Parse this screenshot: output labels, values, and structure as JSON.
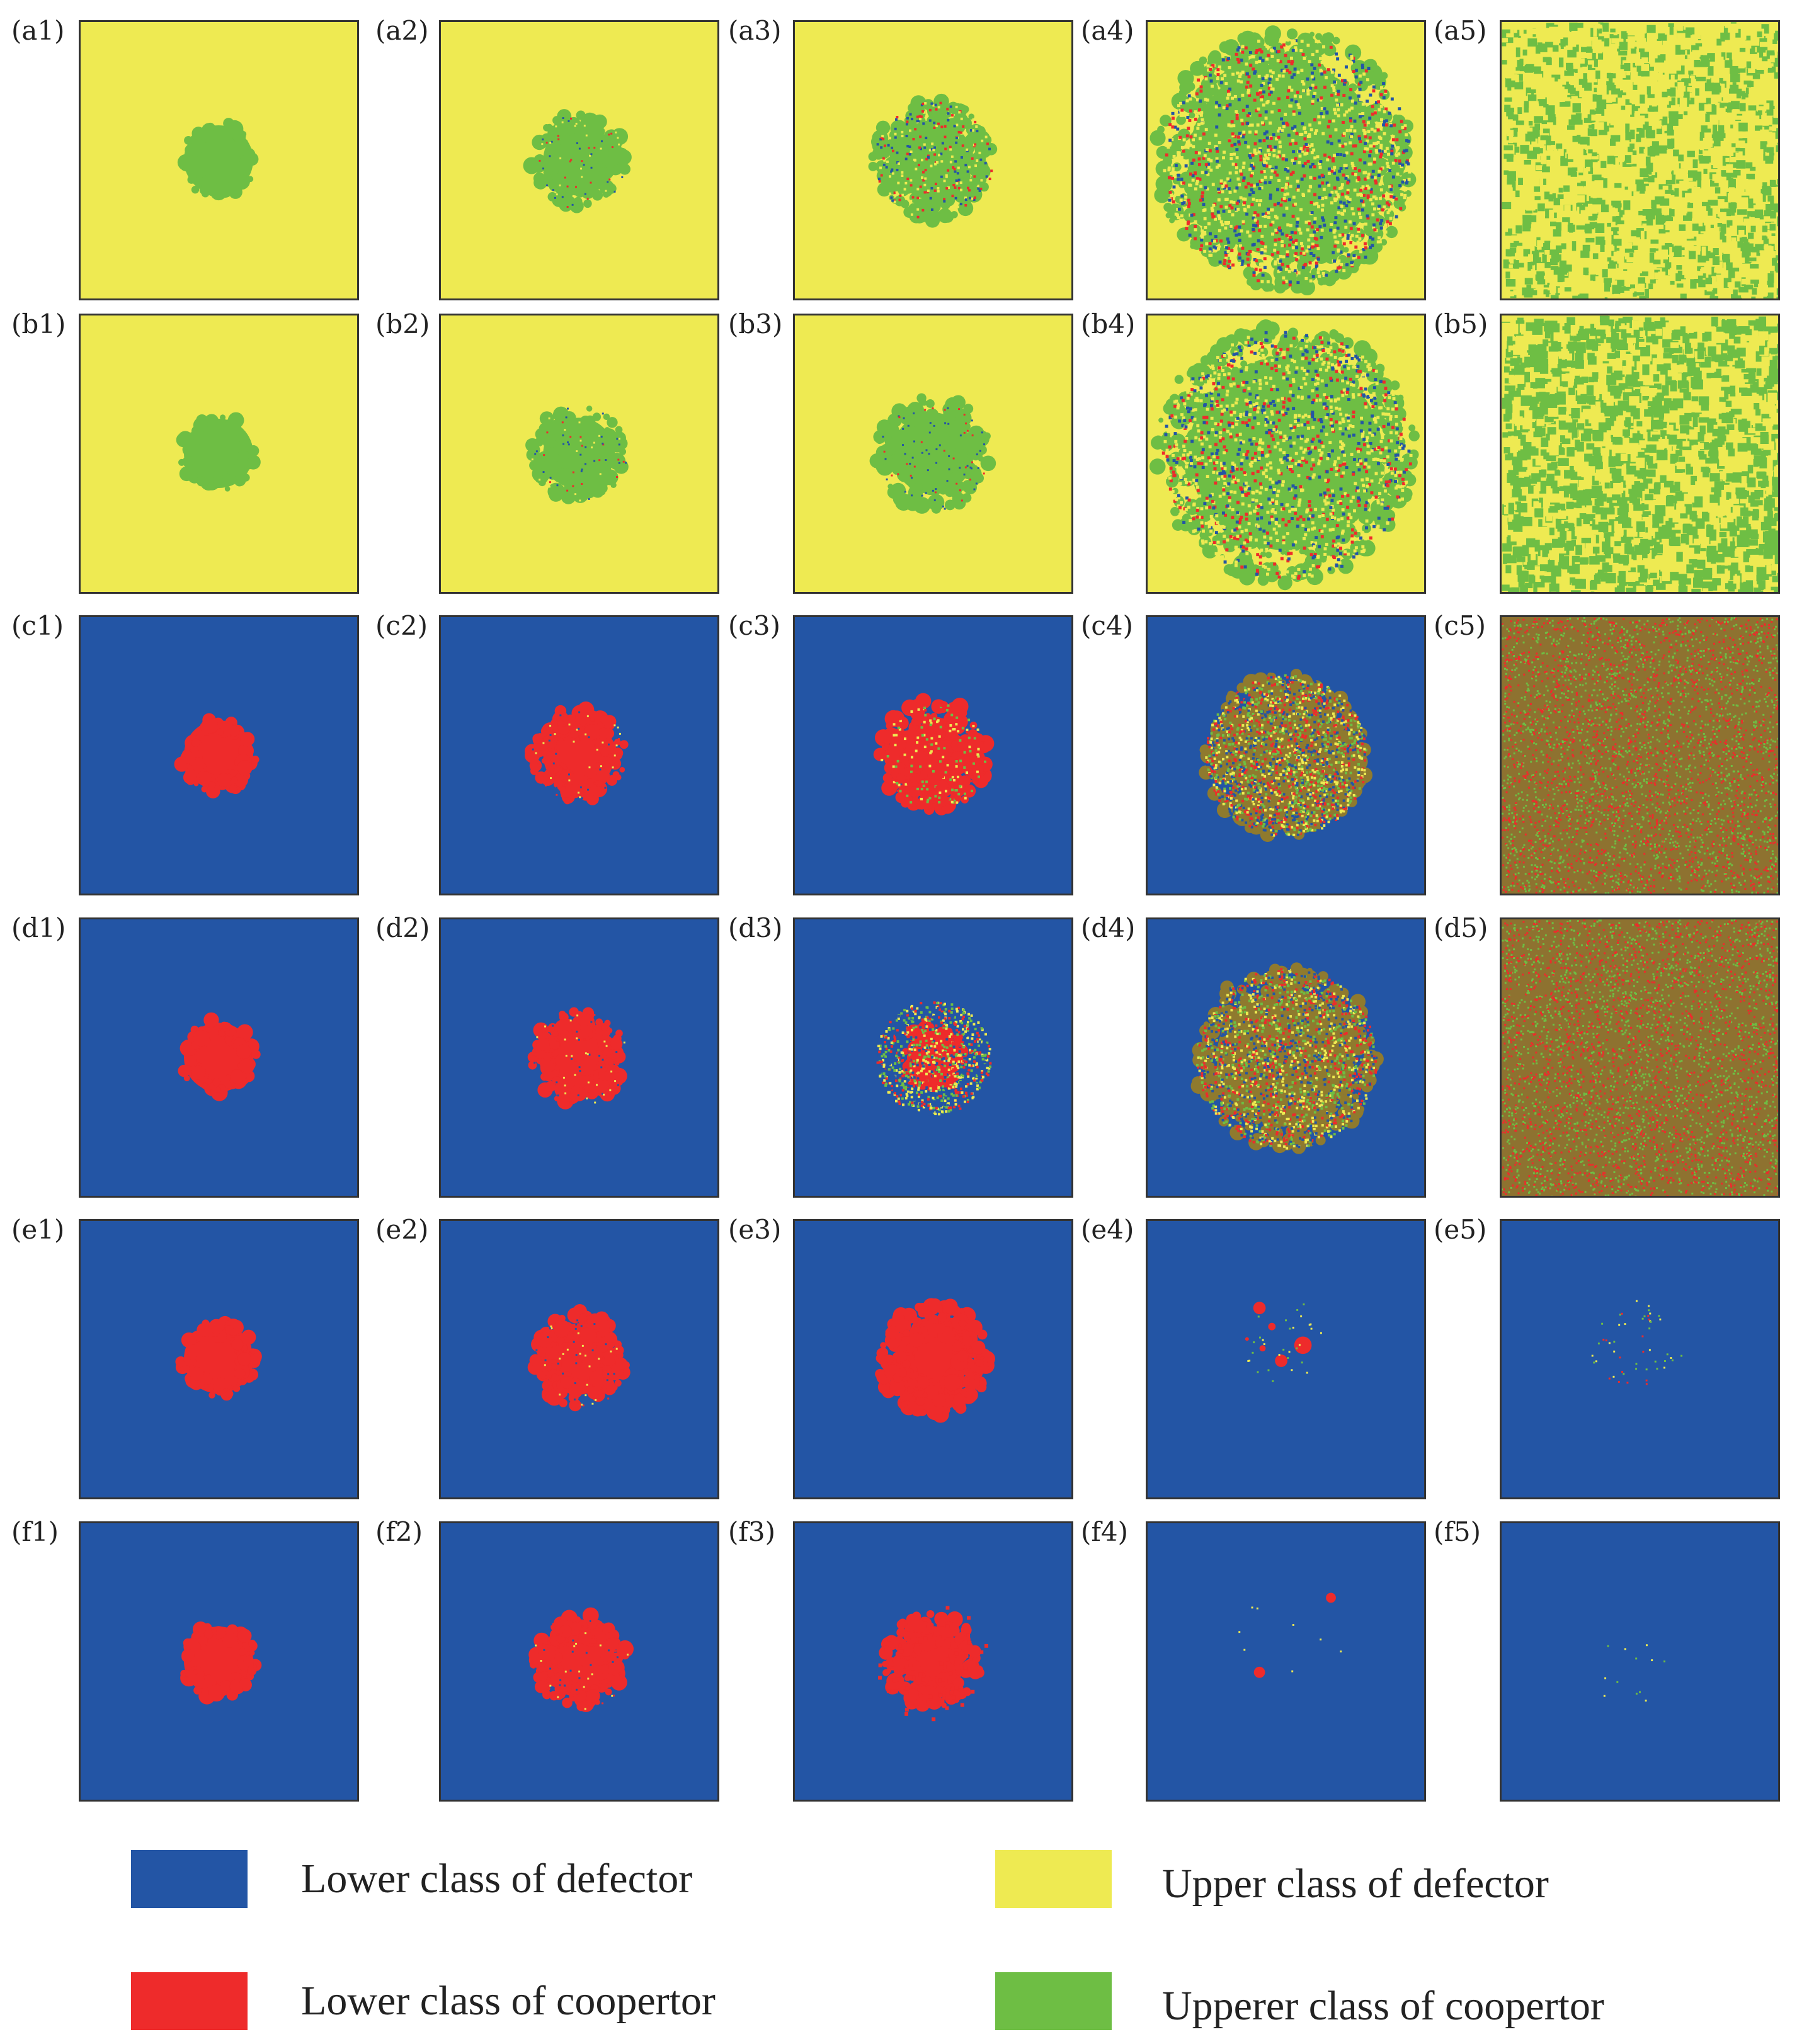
{
  "colors": {
    "lower_defector": "#2355a5",
    "lower_cooperator": "#ee2b2b",
    "upper_defector": "#eeea52",
    "upper_cooperator": "#6ebe44"
  },
  "rows": [
    {
      "key": "a",
      "labels": [
        "(a1)",
        "(a2)",
        "(a3)",
        "(a4)",
        "(a5)"
      ],
      "background": "upper_defector",
      "cluster": "upper_cooperator",
      "states": [
        "disk",
        "disk-rough",
        "spread-small",
        "spread-large",
        "full-mix"
      ]
    },
    {
      "key": "b",
      "labels": [
        "(b1)",
        "(b2)",
        "(b3)",
        "(b4)",
        "(b5)"
      ],
      "background": "upper_defector",
      "cluster": "upper_cooperator",
      "states": [
        "disk",
        "disk-rough",
        "disk-rough-large",
        "spread-large",
        "full-mix-dense"
      ]
    },
    {
      "key": "c",
      "labels": [
        "(c1)",
        "(c2)",
        "(c3)",
        "(c4)",
        "(c5)"
      ],
      "background": "lower_defector",
      "cluster": "lower_cooperator",
      "states": [
        "disk",
        "disk-rough",
        "spread-small-red",
        "spread-mid-mix",
        "full-brown"
      ]
    },
    {
      "key": "d",
      "labels": [
        "(d1)",
        "(d2)",
        "(d3)",
        "(d4)",
        "(d5)"
      ],
      "background": "lower_defector",
      "cluster": "lower_cooperator",
      "states": [
        "disk",
        "disk-rough",
        "ring-mix",
        "spread-mid-mix-large",
        "full-brown"
      ]
    },
    {
      "key": "e",
      "labels": [
        "(e1)",
        "(e2)",
        "(e3)",
        "(e4)",
        "(e5)"
      ],
      "background": "lower_defector",
      "cluster": "lower_cooperator",
      "states": [
        "disk",
        "disk-rough",
        "blob-red",
        "sparse-red",
        "sparse-yellow"
      ]
    },
    {
      "key": "f",
      "labels": [
        "(f1)",
        "(f2)",
        "(f3)",
        "(f4)",
        "(f5)"
      ],
      "background": "lower_defector",
      "cluster": "lower_cooperator",
      "states": [
        "disk",
        "disk-rough",
        "blob-red-fragmented",
        "sparse-red-few",
        "sparse-yellow-few"
      ]
    }
  ],
  "legend": [
    {
      "label": "Lower class of defector",
      "color": "lower_defector"
    },
    {
      "label": "Upper class of defector",
      "color": "upper_defector"
    },
    {
      "label": "Lower class of coopertor",
      "color": "lower_cooperator"
    },
    {
      "label": "Upperer class of coopertor",
      "color": "upper_cooperator"
    }
  ]
}
